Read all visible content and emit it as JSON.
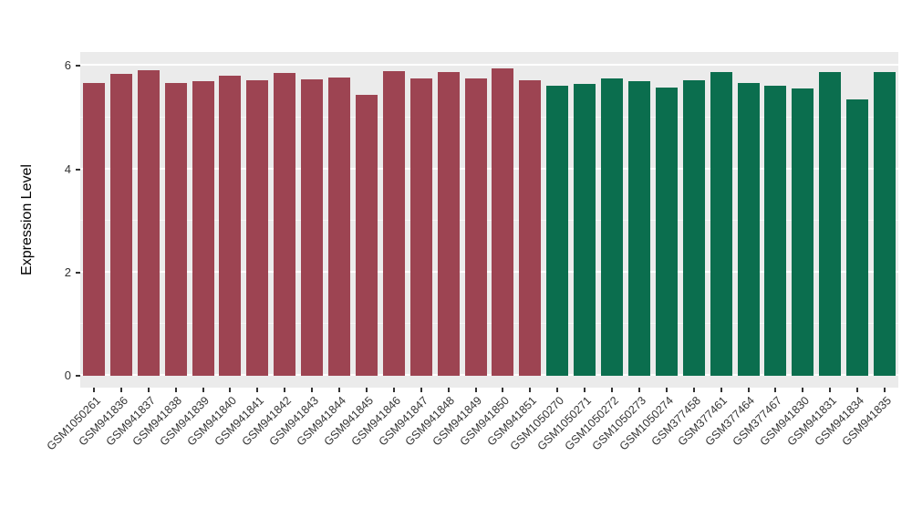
{
  "chart_data": {
    "type": "bar",
    "ylabel": "Expression Level",
    "xlabel": "",
    "ylim": [
      0,
      6.5
    ],
    "yticks": [
      0,
      2,
      4,
      6
    ],
    "minor_yticks": [
      1,
      3,
      5
    ],
    "legend": "none",
    "panel_background": "#EBEBEB",
    "grid_color": "#FFFFFF",
    "colors": {
      "red": "#9D4452",
      "green": "#0B6E4E"
    },
    "categories": [
      "GSM1050261",
      "GSM941836",
      "GSM941837",
      "GSM941838",
      "GSM941839",
      "GSM941840",
      "GSM941841",
      "GSM941842",
      "GSM941843",
      "GSM941844",
      "GSM941845",
      "GSM941846",
      "GSM941847",
      "GSM941848",
      "GSM941849",
      "GSM941850",
      "GSM941851",
      "GSM1050270",
      "GSM1050271",
      "GSM1050272",
      "GSM1050273",
      "GSM1050274",
      "GSM377458",
      "GSM377461",
      "GSM377464",
      "GSM377467",
      "GSM941830",
      "GSM941831",
      "GSM941834",
      "GSM941835"
    ],
    "values": [
      5.68,
      5.85,
      5.92,
      5.68,
      5.7,
      5.82,
      5.73,
      5.86,
      5.74,
      5.78,
      5.45,
      5.9,
      5.76,
      5.88,
      5.76,
      5.95,
      5.72,
      5.62,
      5.65,
      5.76,
      5.7,
      5.58,
      5.72,
      5.88,
      5.67,
      5.62,
      5.57,
      5.88,
      5.35,
      5.88
    ],
    "groups": [
      "red",
      "red",
      "red",
      "red",
      "red",
      "red",
      "red",
      "red",
      "red",
      "red",
      "red",
      "red",
      "red",
      "red",
      "red",
      "red",
      "red",
      "green",
      "green",
      "green",
      "green",
      "green",
      "green",
      "green",
      "green",
      "green",
      "green",
      "green",
      "green",
      "green"
    ]
  }
}
